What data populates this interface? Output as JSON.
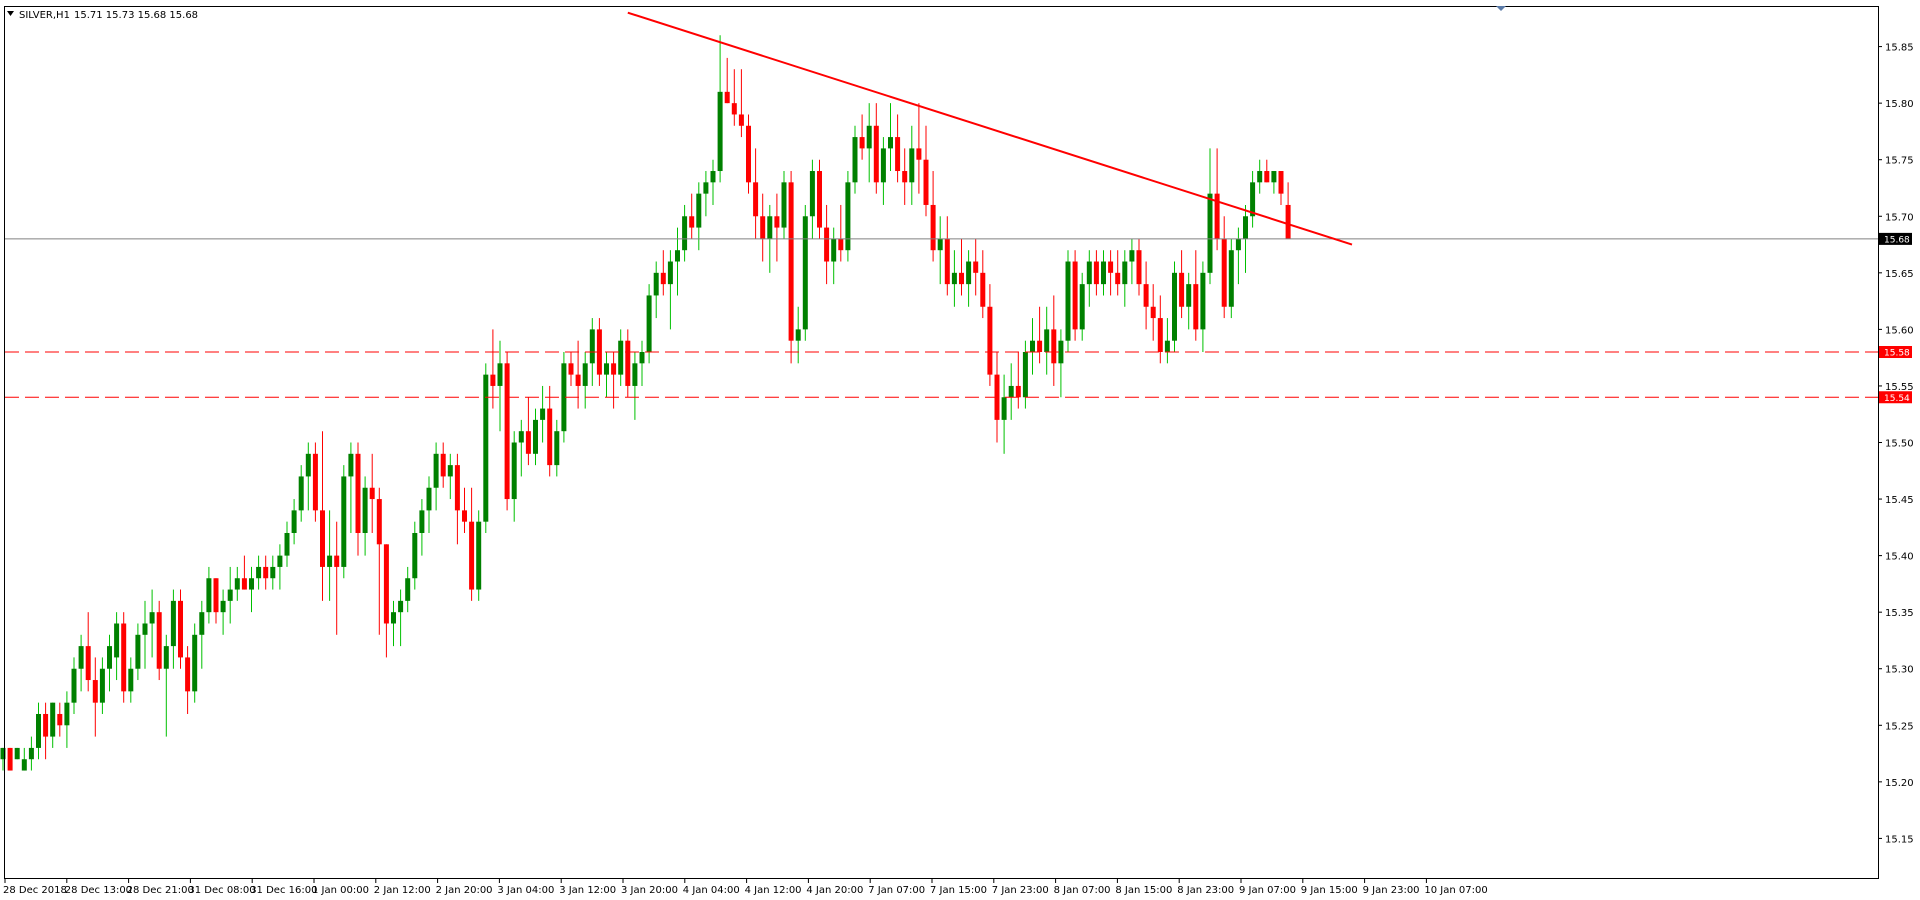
{
  "header": {
    "symbol": "SILVER,H1",
    "ohlc": "15.71 15.73 15.68 15.68"
  },
  "colors": {
    "bull": "#008000",
    "bear": "#ff0000",
    "bull_wick": "#00c000",
    "trendline": "#ff0000",
    "level": "#ff0000",
    "bid_line": "#808080",
    "bid_tag": "#000000"
  },
  "chart_data": {
    "type": "candlestick",
    "symbol": "SILVER",
    "timeframe": "H1",
    "ylim": [
      15.115,
      15.885
    ],
    "y_ticks": [
      "15.85",
      "15.80",
      "15.75",
      "15.70",
      "15.65",
      "15.60",
      "15.55",
      "15.50",
      "15.45",
      "15.40",
      "15.35",
      "15.30",
      "15.25",
      "15.20",
      "15.15"
    ],
    "x_ticks": [
      "28 Dec 2018",
      "28 Dec 13:00",
      "28 Dec 21:00",
      "31 Dec 08:00",
      "31 Dec 16:00",
      "1 Jan 00:00",
      "2 Jan 12:00",
      "2 Jan 20:00",
      "3 Jan 04:00",
      "3 Jan 12:00",
      "3 Jan 20:00",
      "4 Jan 04:00",
      "4 Jan 12:00",
      "4 Jan 20:00",
      "7 Jan 07:00",
      "7 Jan 15:00",
      "7 Jan 23:00",
      "8 Jan 07:00",
      "8 Jan 15:00",
      "8 Jan 23:00",
      "9 Jan 07:00",
      "9 Jan 15:00",
      "9 Jan 23:00",
      "10 Jan 07:00"
    ],
    "current_price": "15.68",
    "levels": [
      "15.58",
      "15.54"
    ],
    "trendline": {
      "from_bar": 88,
      "from_price": 15.88,
      "to_bar": 190,
      "to_price": 15.675
    },
    "candles": [
      [
        15.22,
        15.23,
        15.21,
        15.23
      ],
      [
        15.23,
        15.23,
        15.21,
        15.21
      ],
      [
        15.22,
        15.23,
        15.22,
        15.23
      ],
      [
        15.21,
        15.23,
        15.21,
        15.22
      ],
      [
        15.22,
        15.24,
        15.21,
        15.23
      ],
      [
        15.23,
        15.27,
        15.22,
        15.26
      ],
      [
        15.26,
        15.27,
        15.22,
        15.24
      ],
      [
        15.24,
        15.27,
        15.23,
        15.27
      ],
      [
        15.26,
        15.27,
        15.24,
        15.25
      ],
      [
        15.25,
        15.28,
        15.23,
        15.27
      ],
      [
        15.27,
        15.31,
        15.26,
        15.3
      ],
      [
        15.3,
        15.33,
        15.28,
        15.32
      ],
      [
        15.32,
        15.35,
        15.28,
        15.29
      ],
      [
        15.29,
        15.31,
        15.24,
        15.27
      ],
      [
        15.27,
        15.31,
        15.26,
        15.3
      ],
      [
        15.3,
        15.33,
        15.28,
        15.32
      ],
      [
        15.31,
        15.35,
        15.29,
        15.34
      ],
      [
        15.34,
        15.35,
        15.27,
        15.28
      ],
      [
        15.28,
        15.31,
        15.27,
        15.3
      ],
      [
        15.3,
        15.34,
        15.29,
        15.33
      ],
      [
        15.33,
        15.36,
        15.3,
        15.34
      ],
      [
        15.34,
        15.37,
        15.31,
        15.35
      ],
      [
        15.35,
        15.36,
        15.29,
        15.3
      ],
      [
        15.3,
        15.33,
        15.24,
        15.32
      ],
      [
        15.32,
        15.37,
        15.3,
        15.36
      ],
      [
        15.36,
        15.37,
        15.3,
        15.31
      ],
      [
        15.31,
        15.32,
        15.26,
        15.28
      ],
      [
        15.28,
        15.34,
        15.27,
        15.33
      ],
      [
        15.33,
        15.36,
        15.3,
        15.35
      ],
      [
        15.35,
        15.39,
        15.34,
        15.38
      ],
      [
        15.38,
        15.38,
        15.34,
        15.35
      ],
      [
        15.35,
        15.37,
        15.33,
        15.36
      ],
      [
        15.36,
        15.39,
        15.34,
        15.37
      ],
      [
        15.37,
        15.39,
        15.36,
        15.38
      ],
      [
        15.38,
        15.4,
        15.37,
        15.37
      ],
      [
        15.37,
        15.39,
        15.35,
        15.38
      ],
      [
        15.38,
        15.4,
        15.37,
        15.39
      ],
      [
        15.39,
        15.4,
        15.37,
        15.38
      ],
      [
        15.38,
        15.4,
        15.37,
        15.39
      ],
      [
        15.39,
        15.41,
        15.37,
        15.4
      ],
      [
        15.4,
        15.43,
        15.39,
        15.42
      ],
      [
        15.42,
        15.45,
        15.41,
        15.44
      ],
      [
        15.44,
        15.48,
        15.43,
        15.47
      ],
      [
        15.47,
        15.5,
        15.44,
        15.49
      ],
      [
        15.49,
        15.5,
        15.43,
        15.44
      ],
      [
        15.44,
        15.51,
        15.36,
        15.39
      ],
      [
        15.39,
        15.44,
        15.36,
        15.4
      ],
      [
        15.4,
        15.43,
        15.33,
        15.39
      ],
      [
        15.39,
        15.48,
        15.38,
        15.47
      ],
      [
        15.47,
        15.5,
        15.42,
        15.49
      ],
      [
        15.49,
        15.5,
        15.4,
        15.42
      ],
      [
        15.42,
        15.47,
        15.4,
        15.46
      ],
      [
        15.46,
        15.49,
        15.42,
        15.45
      ],
      [
        15.45,
        15.46,
        15.33,
        15.41
      ],
      [
        15.41,
        15.41,
        15.31,
        15.34
      ],
      [
        15.34,
        15.36,
        15.32,
        15.35
      ],
      [
        15.35,
        15.37,
        15.32,
        15.36
      ],
      [
        15.36,
        15.39,
        15.35,
        15.38
      ],
      [
        15.38,
        15.43,
        15.37,
        15.42
      ],
      [
        15.42,
        15.45,
        15.4,
        15.44
      ],
      [
        15.44,
        15.47,
        15.42,
        15.46
      ],
      [
        15.46,
        15.5,
        15.44,
        15.49
      ],
      [
        15.49,
        15.5,
        15.46,
        15.47
      ],
      [
        15.47,
        15.49,
        15.45,
        15.48
      ],
      [
        15.48,
        15.49,
        15.41,
        15.44
      ],
      [
        15.44,
        15.46,
        15.42,
        15.43
      ],
      [
        15.43,
        15.46,
        15.36,
        15.37
      ],
      [
        15.37,
        15.44,
        15.36,
        15.43
      ],
      [
        15.43,
        15.57,
        15.42,
        15.56
      ],
      [
        15.56,
        15.6,
        15.53,
        15.55
      ],
      [
        15.55,
        15.59,
        15.51,
        15.57
      ],
      [
        15.57,
        15.58,
        15.44,
        15.45
      ],
      [
        15.45,
        15.51,
        15.43,
        15.5
      ],
      [
        15.5,
        15.52,
        15.47,
        15.51
      ],
      [
        15.51,
        15.54,
        15.48,
        15.49
      ],
      [
        15.49,
        15.53,
        15.48,
        15.52
      ],
      [
        15.52,
        15.55,
        15.5,
        15.53
      ],
      [
        15.53,
        15.55,
        15.47,
        15.48
      ],
      [
        15.48,
        15.52,
        15.47,
        15.51
      ],
      [
        15.51,
        15.58,
        15.5,
        15.57
      ],
      [
        15.57,
        15.58,
        15.55,
        15.56
      ],
      [
        15.56,
        15.59,
        15.53,
        15.55
      ],
      [
        15.55,
        15.58,
        15.53,
        15.57
      ],
      [
        15.57,
        15.61,
        15.55,
        15.6
      ],
      [
        15.6,
        15.61,
        15.55,
        15.56
      ],
      [
        15.56,
        15.58,
        15.54,
        15.57
      ],
      [
        15.57,
        15.58,
        15.53,
        15.56
      ],
      [
        15.56,
        15.6,
        15.55,
        15.59
      ],
      [
        15.59,
        15.6,
        15.54,
        15.55
      ],
      [
        15.55,
        15.58,
        15.52,
        15.57
      ],
      [
        15.57,
        15.59,
        15.55,
        15.58
      ],
      [
        15.58,
        15.64,
        15.57,
        15.63
      ],
      [
        15.63,
        15.66,
        15.61,
        15.65
      ],
      [
        15.65,
        15.67,
        15.63,
        15.64
      ],
      [
        15.64,
        15.67,
        15.6,
        15.66
      ],
      [
        15.66,
        15.69,
        15.63,
        15.67
      ],
      [
        15.67,
        15.71,
        15.66,
        15.7
      ],
      [
        15.7,
        15.72,
        15.68,
        15.69
      ],
      [
        15.69,
        15.73,
        15.67,
        15.72
      ],
      [
        15.72,
        15.74,
        15.7,
        15.73
      ],
      [
        15.73,
        15.75,
        15.71,
        15.74
      ],
      [
        15.74,
        15.86,
        15.73,
        15.81
      ],
      [
        15.81,
        15.84,
        15.8,
        15.8
      ],
      [
        15.8,
        15.83,
        15.78,
        15.79
      ],
      [
        15.79,
        15.83,
        15.77,
        15.78
      ],
      [
        15.78,
        15.79,
        15.72,
        15.73
      ],
      [
        15.73,
        15.76,
        15.68,
        15.7
      ],
      [
        15.7,
        15.72,
        15.66,
        15.68
      ],
      [
        15.68,
        15.71,
        15.65,
        15.7
      ],
      [
        15.7,
        15.72,
        15.66,
        15.69
      ],
      [
        15.69,
        15.74,
        15.68,
        15.73
      ],
      [
        15.73,
        15.74,
        15.57,
        15.59
      ],
      [
        15.59,
        15.62,
        15.57,
        15.6
      ],
      [
        15.6,
        15.71,
        15.59,
        15.7
      ],
      [
        15.7,
        15.75,
        15.68,
        15.74
      ],
      [
        15.74,
        15.75,
        15.68,
        15.69
      ],
      [
        15.69,
        15.71,
        15.64,
        15.66
      ],
      [
        15.66,
        15.69,
        15.64,
        15.68
      ],
      [
        15.68,
        15.71,
        15.66,
        15.67
      ],
      [
        15.67,
        15.74,
        15.66,
        15.73
      ],
      [
        15.73,
        15.78,
        15.72,
        15.77
      ],
      [
        15.77,
        15.79,
        15.75,
        15.76
      ],
      [
        15.76,
        15.8,
        15.73,
        15.78
      ],
      [
        15.78,
        15.8,
        15.72,
        15.73
      ],
      [
        15.73,
        15.77,
        15.71,
        15.76
      ],
      [
        15.76,
        15.8,
        15.74,
        15.77
      ],
      [
        15.77,
        15.79,
        15.73,
        15.74
      ],
      [
        15.74,
        15.76,
        15.71,
        15.73
      ],
      [
        15.73,
        15.78,
        15.71,
        15.76
      ],
      [
        15.76,
        15.8,
        15.72,
        15.75
      ],
      [
        15.75,
        15.78,
        15.7,
        15.71
      ],
      [
        15.71,
        15.74,
        15.66,
        15.67
      ],
      [
        15.67,
        15.7,
        15.64,
        15.68
      ],
      [
        15.68,
        15.7,
        15.63,
        15.64
      ],
      [
        15.64,
        15.67,
        15.62,
        15.65
      ],
      [
        15.65,
        15.68,
        15.63,
        15.64
      ],
      [
        15.64,
        15.67,
        15.62,
        15.66
      ],
      [
        15.66,
        15.68,
        15.63,
        15.65
      ],
      [
        15.65,
        15.67,
        15.61,
        15.62
      ],
      [
        15.62,
        15.64,
        15.55,
        15.56
      ],
      [
        15.56,
        15.58,
        15.5,
        15.52
      ],
      [
        15.52,
        15.56,
        15.49,
        15.54
      ],
      [
        15.54,
        15.57,
        15.52,
        15.55
      ],
      [
        15.55,
        15.58,
        15.53,
        15.54
      ],
      [
        15.54,
        15.59,
        15.53,
        15.58
      ],
      [
        15.58,
        15.61,
        15.56,
        15.59
      ],
      [
        15.59,
        15.62,
        15.57,
        15.58
      ],
      [
        15.58,
        15.62,
        15.56,
        15.6
      ],
      [
        15.6,
        15.63,
        15.55,
        15.57
      ],
      [
        15.57,
        15.6,
        15.54,
        15.59
      ],
      [
        15.59,
        15.67,
        15.58,
        15.66
      ],
      [
        15.66,
        15.67,
        15.59,
        15.6
      ],
      [
        15.6,
        15.65,
        15.59,
        15.64
      ],
      [
        15.64,
        15.67,
        15.62,
        15.66
      ],
      [
        15.66,
        15.67,
        15.63,
        15.64
      ],
      [
        15.64,
        15.67,
        15.63,
        15.66
      ],
      [
        15.66,
        15.67,
        15.63,
        15.65
      ],
      [
        15.65,
        15.67,
        15.63,
        15.64
      ],
      [
        15.64,
        15.67,
        15.62,
        15.66
      ],
      [
        15.66,
        15.68,
        15.64,
        15.67
      ],
      [
        15.67,
        15.68,
        15.63,
        15.64
      ],
      [
        15.64,
        15.66,
        15.6,
        15.62
      ],
      [
        15.62,
        15.64,
        15.59,
        15.61
      ],
      [
        15.61,
        15.63,
        15.57,
        15.58
      ],
      [
        15.58,
        15.61,
        15.57,
        15.59
      ],
      [
        15.59,
        15.66,
        15.58,
        15.65
      ],
      [
        15.65,
        15.67,
        15.61,
        15.62
      ],
      [
        15.62,
        15.65,
        15.6,
        15.64
      ],
      [
        15.64,
        15.67,
        15.59,
        15.6
      ],
      [
        15.6,
        15.66,
        15.58,
        15.65
      ],
      [
        15.65,
        15.76,
        15.64,
        15.72
      ],
      [
        15.72,
        15.76,
        15.67,
        15.68
      ],
      [
        15.68,
        15.7,
        15.61,
        15.62
      ],
      [
        15.62,
        15.68,
        15.61,
        15.67
      ],
      [
        15.67,
        15.69,
        15.64,
        15.68
      ],
      [
        15.68,
        15.71,
        15.65,
        15.7
      ],
      [
        15.7,
        15.74,
        15.69,
        15.73
      ],
      [
        15.73,
        15.75,
        15.72,
        15.74
      ],
      [
        15.74,
        15.75,
        15.73,
        15.73
      ],
      [
        15.73,
        15.74,
        15.72,
        15.74
      ],
      [
        15.74,
        15.74,
        15.71,
        15.72
      ],
      [
        15.71,
        15.73,
        15.68,
        15.68
      ]
    ]
  }
}
